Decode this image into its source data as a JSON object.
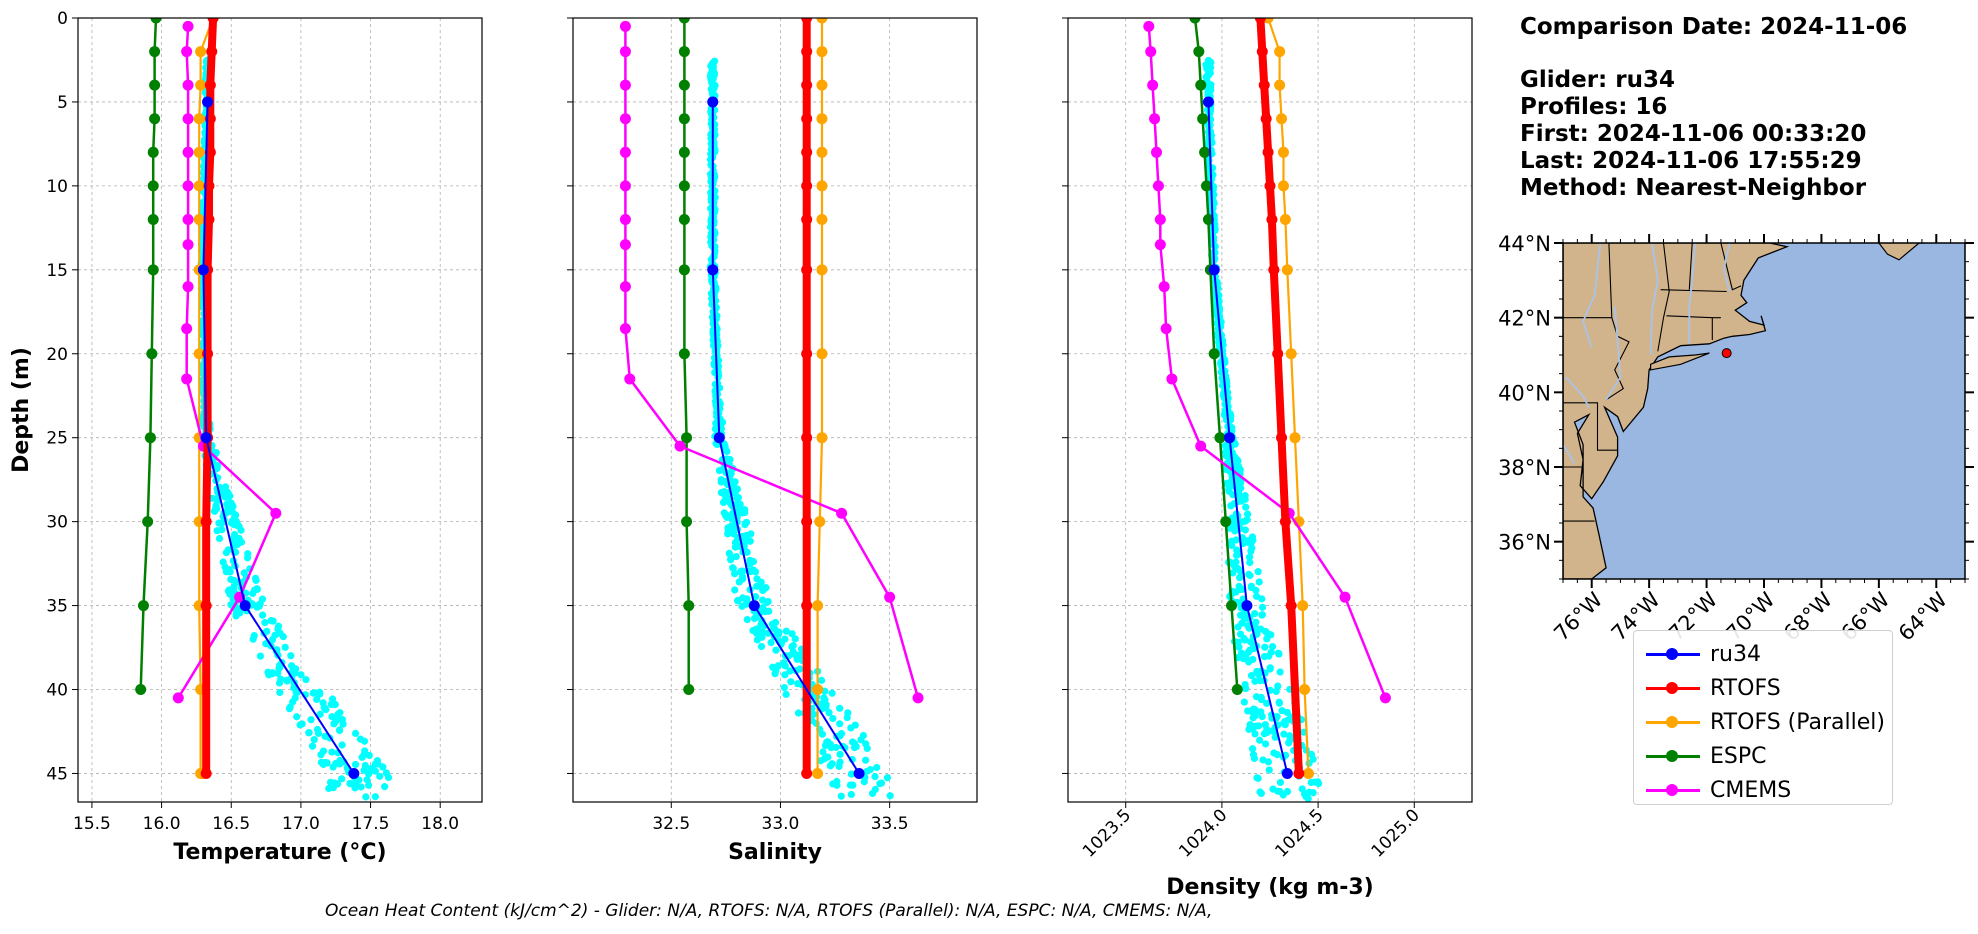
{
  "info": {
    "comparison": "Comparison Date: 2024-11-06",
    "glider": "Glider: ru34",
    "profiles": "Profiles: 16",
    "first": "First: 2024-11-06 00:33:20",
    "last": "Last: 2024-11-06 17:55:29",
    "method": "Method: Nearest-Neighbor"
  },
  "footer": "Ocean Heat Content (kJ/cm^2) - Glider: N/A,  RTOFS: N/A,  RTOFS (Parallel): N/A,  ESPC: N/A,  CMEMS: N/A,",
  "colors": {
    "ru34": "#0000ff",
    "RTOFS": "#ff0000",
    "RTOFS (Parallel)": "#ffa500",
    "ESPC": "#008000",
    "CMEMS": "#ff00ff",
    "glider_points": "#00ffff",
    "land": "#d2b48c",
    "ocean": "#9ab7e2",
    "rivers": "#a9c3e9"
  },
  "legend": [
    "ru34",
    "RTOFS",
    "RTOFS (Parallel)",
    "ESPC",
    "CMEMS"
  ],
  "map": {
    "lat_ticks": [
      "44°N",
      "42°N",
      "40°N",
      "38°N",
      "36°N"
    ],
    "lon_ticks": [
      "76°W",
      "74°W",
      "72°W",
      "70°W",
      "68°W",
      "66°W",
      "64°W"
    ],
    "extent": {
      "lon": [
        -77,
        -63
      ],
      "lat": [
        35,
        44
      ]
    },
    "glider_location": {
      "lon": -71.3,
      "lat": 41.05
    }
  },
  "chart_data": [
    {
      "type": "line",
      "xlabel": "Temperature (°C)",
      "ylabel": "Depth (m)",
      "xlim": [
        15.4,
        18.3
      ],
      "ylim": [
        46.7,
        0
      ],
      "xticks": [
        15.5,
        16.0,
        16.5,
        17.0,
        17.5,
        18.0
      ],
      "yticks": [
        0,
        5,
        10,
        15,
        20,
        25,
        30,
        35,
        40,
        45
      ],
      "grid": true,
      "series": [
        {
          "name": "ru34",
          "x": [
            16.33,
            16.3,
            16.32,
            16.6,
            17.38
          ],
          "y": [
            5,
            15,
            25,
            35,
            45
          ]
        },
        {
          "name": "RTOFS",
          "x": [
            16.37,
            16.36,
            16.35,
            16.35,
            16.35,
            16.34,
            16.34,
            16.33,
            16.33,
            16.33,
            16.32,
            16.32,
            16.32
          ],
          "y": [
            0,
            2,
            4,
            6,
            8,
            10,
            12,
            15,
            20,
            25,
            30,
            35,
            45
          ]
        },
        {
          "name": "RTOFS (Parallel)",
          "x": [
            16.37,
            16.28,
            16.28,
            16.27,
            16.27,
            16.27,
            16.27,
            16.27,
            16.27,
            16.27,
            16.27,
            16.27,
            16.28,
            16.28,
            16.29
          ],
          "y": [
            0,
            2,
            4,
            6,
            8,
            10,
            12,
            15,
            20,
            25,
            30,
            35,
            40,
            45,
            45
          ]
        },
        {
          "name": "ESPC",
          "x": [
            15.96,
            15.95,
            15.95,
            15.95,
            15.94,
            15.94,
            15.94,
            15.94,
            15.93,
            15.92,
            15.9,
            15.87,
            15.85
          ],
          "y": [
            0,
            2,
            4,
            6,
            8,
            10,
            12,
            15,
            20,
            25,
            30,
            35,
            40
          ]
        },
        {
          "name": "CMEMS",
          "x": [
            16.19,
            16.18,
            16.19,
            16.19,
            16.19,
            16.19,
            16.19,
            16.19,
            16.19,
            16.18,
            16.18,
            16.3,
            16.82,
            16.56,
            16.12
          ],
          "y": [
            0.5,
            2,
            4,
            6,
            8,
            10,
            12,
            13.5,
            16,
            18.5,
            21.5,
            25.5,
            29.5,
            34.5,
            40.5
          ]
        }
      ]
    },
    {
      "type": "line",
      "xlabel": "Salinity",
      "ylabel": "",
      "xlim": [
        32.05,
        33.9
      ],
      "ylim": [
        46.7,
        0
      ],
      "xticks": [
        32.5,
        33.0,
        33.5
      ],
      "yticks": [
        0,
        5,
        10,
        15,
        20,
        25,
        30,
        35,
        40,
        45
      ],
      "grid": true,
      "series": [
        {
          "name": "ru34",
          "x": [
            32.69,
            32.69,
            32.72,
            32.88,
            33.36
          ],
          "y": [
            5,
            15,
            25,
            35,
            45
          ]
        },
        {
          "name": "RTOFS",
          "x": [
            33.12,
            33.12,
            33.12,
            33.12,
            33.12,
            33.12,
            33.12,
            33.12,
            33.12,
            33.12,
            33.12,
            33.12,
            33.12
          ],
          "y": [
            0,
            2,
            4,
            6,
            8,
            10,
            12,
            15,
            20,
            25,
            30,
            35,
            45
          ]
        },
        {
          "name": "RTOFS (Parallel)",
          "x": [
            33.19,
            33.19,
            33.19,
            33.19,
            33.19,
            33.19,
            33.19,
            33.19,
            33.19,
            33.19,
            33.18,
            33.17,
            33.17,
            33.17
          ],
          "y": [
            0,
            2,
            4,
            6,
            8,
            10,
            12,
            15,
            20,
            25,
            30,
            35,
            40,
            45
          ]
        },
        {
          "name": "ESPC",
          "x": [
            32.56,
            32.56,
            32.56,
            32.56,
            32.56,
            32.56,
            32.56,
            32.56,
            32.56,
            32.57,
            32.57,
            32.58,
            32.58
          ],
          "y": [
            0,
            2,
            4,
            6,
            8,
            10,
            12,
            15,
            20,
            25,
            30,
            35,
            40
          ]
        },
        {
          "name": "CMEMS",
          "x": [
            32.29,
            32.29,
            32.29,
            32.29,
            32.29,
            32.29,
            32.29,
            32.29,
            32.29,
            32.29,
            32.31,
            32.54,
            33.28,
            33.5,
            33.63
          ],
          "y": [
            0.5,
            2,
            4,
            6,
            8,
            10,
            12,
            13.5,
            16,
            18.5,
            21.5,
            25.5,
            29.5,
            34.5,
            40.5
          ]
        }
      ]
    },
    {
      "type": "line",
      "xlabel": "Density (kg m-3)",
      "ylabel": "",
      "xlim": [
        1023.2,
        1025.3
      ],
      "ylim": [
        46.7,
        0
      ],
      "xticks": [
        1023.5,
        1024.0,
        1024.5,
        1025.0
      ],
      "yticks": [
        0,
        5,
        10,
        15,
        20,
        25,
        30,
        35,
        40,
        45
      ],
      "grid": true,
      "series": [
        {
          "name": "ru34",
          "x": [
            1023.93,
            1023.96,
            1024.04,
            1024.13,
            1024.34
          ],
          "y": [
            5,
            15,
            25,
            35,
            45
          ]
        },
        {
          "name": "RTOFS",
          "x": [
            1024.2,
            1024.21,
            1024.22,
            1024.23,
            1024.24,
            1024.25,
            1024.26,
            1024.27,
            1024.29,
            1024.31,
            1024.33,
            1024.36,
            1024.4
          ],
          "y": [
            0,
            2,
            4,
            6,
            8,
            10,
            12,
            15,
            20,
            25,
            30,
            35,
            45
          ]
        },
        {
          "name": "RTOFS (Parallel)",
          "x": [
            1024.24,
            1024.3,
            1024.3,
            1024.31,
            1024.32,
            1024.32,
            1024.33,
            1024.34,
            1024.36,
            1024.38,
            1024.4,
            1024.42,
            1024.43,
            1024.45
          ],
          "y": [
            0,
            2,
            4,
            6,
            8,
            10,
            12,
            15,
            20,
            25,
            30,
            35,
            40,
            45
          ]
        },
        {
          "name": "ESPC",
          "x": [
            1023.86,
            1023.88,
            1023.89,
            1023.9,
            1023.91,
            1023.92,
            1023.93,
            1023.94,
            1023.96,
            1023.99,
            1024.02,
            1024.05,
            1024.08
          ],
          "y": [
            0,
            2,
            4,
            6,
            8,
            10,
            12,
            15,
            20,
            25,
            30,
            35,
            40
          ]
        },
        {
          "name": "CMEMS",
          "x": [
            1023.62,
            1023.63,
            1023.64,
            1023.65,
            1023.66,
            1023.67,
            1023.68,
            1023.68,
            1023.7,
            1023.71,
            1023.74,
            1023.89,
            1024.35,
            1024.64,
            1024.85
          ],
          "y": [
            0.5,
            2,
            4,
            6,
            8,
            10,
            12,
            13.5,
            16,
            18.5,
            21.5,
            25.5,
            29.5,
            34.5,
            40.5
          ]
        }
      ]
    }
  ]
}
